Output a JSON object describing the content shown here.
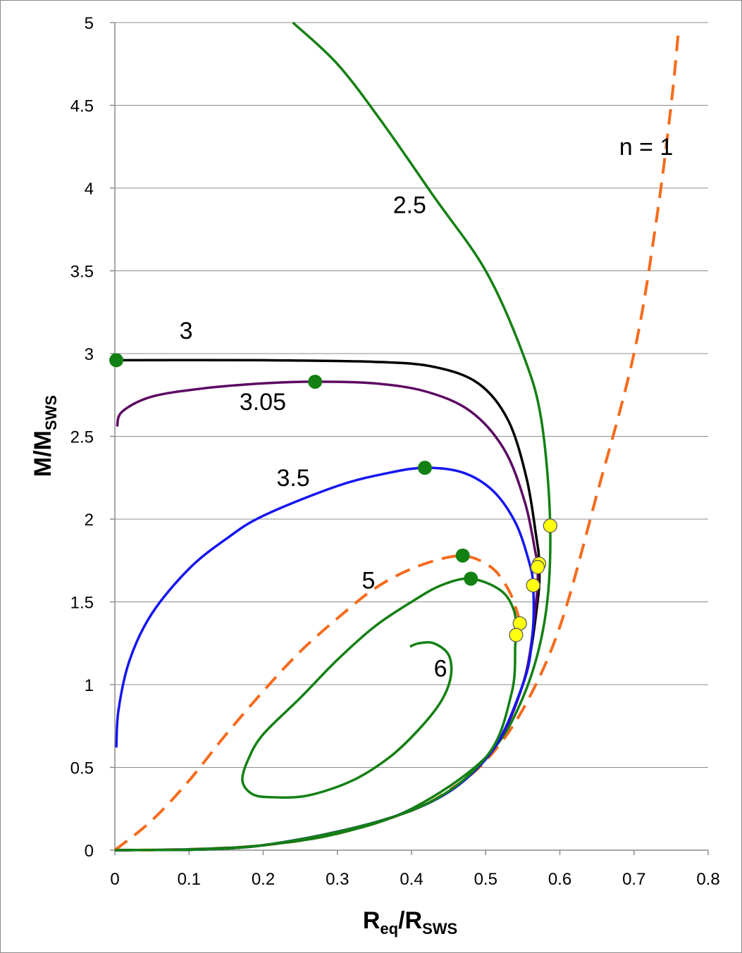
{
  "chart_data": {
    "type": "line",
    "xlabel": {
      "main": "R",
      "sub_main": "eq",
      "sep": "/R",
      "sub_den": "SWS"
    },
    "ylabel": {
      "main": "M/M",
      "sub": "SWS"
    },
    "xlim": [
      0,
      0.8
    ],
    "ylim": [
      0,
      5
    ],
    "x_ticks": [
      "0",
      "0.1",
      "0.2",
      "0.3",
      "0.4",
      "0.5",
      "0.6",
      "0.7",
      "0.8"
    ],
    "y_ticks": [
      "0",
      "0.5",
      "1",
      "1.5",
      "2",
      "2.5",
      "3",
      "3.5",
      "4",
      "4.5",
      "5"
    ],
    "grid": "horizontal",
    "colors": {
      "green": "#138013",
      "black": "#000000",
      "purple": "#5c0a63",
      "blue": "#1515f2",
      "orange": "#f56b1c",
      "yellow": "#ffff10"
    },
    "series": [
      {
        "name": "n = 1",
        "label": "n = 1",
        "color": "orange",
        "dashed": true,
        "points": [
          [
            0,
            0
          ],
          [
            0.1,
            0.005
          ],
          [
            0.2,
            0.03
          ],
          [
            0.3,
            0.1
          ],
          [
            0.4,
            0.24
          ],
          [
            0.45,
            0.36
          ],
          [
            0.5,
            0.54
          ],
          [
            0.55,
            0.85
          ],
          [
            0.6,
            1.35
          ],
          [
            0.65,
            2.15
          ],
          [
            0.7,
            3.0
          ],
          [
            0.73,
            3.8
          ],
          [
            0.75,
            4.5
          ],
          [
            0.76,
            4.95
          ]
        ]
      },
      {
        "name": "2.5",
        "label": "2.5",
        "color": "green",
        "dashed": false,
        "points": [
          [
            0,
            0
          ],
          [
            0.1,
            0.005
          ],
          [
            0.2,
            0.03
          ],
          [
            0.3,
            0.1
          ],
          [
            0.4,
            0.25
          ],
          [
            0.5,
            0.56
          ],
          [
            0.55,
            0.92
          ],
          [
            0.58,
            1.4
          ],
          [
            0.587,
            1.96
          ],
          [
            0.575,
            2.6
          ],
          [
            0.55,
            3.0
          ],
          [
            0.5,
            3.5
          ],
          [
            0.43,
            3.95
          ],
          [
            0.36,
            4.4
          ],
          [
            0.3,
            4.75
          ],
          [
            0.24,
            5.0
          ]
        ]
      },
      {
        "name": "3",
        "label": "3",
        "color": "black",
        "dashed": false,
        "points": [
          [
            0,
            2.96
          ],
          [
            0.2,
            2.96
          ],
          [
            0.35,
            2.95
          ],
          [
            0.43,
            2.92
          ],
          [
            0.49,
            2.82
          ],
          [
            0.53,
            2.6
          ],
          [
            0.555,
            2.25
          ],
          [
            0.568,
            1.9
          ],
          [
            0.572,
            1.74
          ],
          [
            0.57,
            1.5
          ],
          [
            0.55,
            1.0
          ],
          [
            0.5,
            0.55
          ],
          [
            0.4,
            0.24
          ],
          [
            0.2,
            0.03
          ],
          [
            0,
            0
          ]
        ]
      },
      {
        "name": "3.05",
        "label": "3.05",
        "color": "purple",
        "dashed": false,
        "points": [
          [
            0.003,
            2.56
          ],
          [
            0.01,
            2.65
          ],
          [
            0.05,
            2.74
          ],
          [
            0.12,
            2.79
          ],
          [
            0.2,
            2.82
          ],
          [
            0.27,
            2.83
          ],
          [
            0.35,
            2.82
          ],
          [
            0.42,
            2.77
          ],
          [
            0.48,
            2.65
          ],
          [
            0.525,
            2.42
          ],
          [
            0.553,
            2.1
          ],
          [
            0.567,
            1.8
          ],
          [
            0.57,
            1.72
          ],
          [
            0.568,
            1.5
          ],
          [
            0.55,
            1.0
          ],
          [
            0.5,
            0.55
          ],
          [
            0.4,
            0.24
          ],
          [
            0.2,
            0.03
          ],
          [
            0,
            0
          ]
        ]
      },
      {
        "name": "3.5",
        "label": "3.5",
        "color": "blue",
        "dashed": false,
        "points": [
          [
            0.002,
            0.62
          ],
          [
            0.005,
            0.85
          ],
          [
            0.02,
            1.15
          ],
          [
            0.05,
            1.43
          ],
          [
            0.1,
            1.7
          ],
          [
            0.15,
            1.88
          ],
          [
            0.2,
            2.02
          ],
          [
            0.3,
            2.2
          ],
          [
            0.37,
            2.28
          ],
          [
            0.42,
            2.31
          ],
          [
            0.47,
            2.28
          ],
          [
            0.51,
            2.17
          ],
          [
            0.54,
            1.98
          ],
          [
            0.558,
            1.75
          ],
          [
            0.564,
            1.6
          ],
          [
            0.563,
            1.3
          ],
          [
            0.55,
            1.0
          ],
          [
            0.5,
            0.55
          ],
          [
            0.4,
            0.24
          ],
          [
            0.2,
            0.03
          ],
          [
            0,
            0
          ]
        ]
      },
      {
        "name": "5",
        "label": "5",
        "color": "orange",
        "dashed": true,
        "points": [
          [
            0,
            0
          ],
          [
            0.05,
            0.18
          ],
          [
            0.1,
            0.42
          ],
          [
            0.15,
            0.7
          ],
          [
            0.2,
            0.96
          ],
          [
            0.25,
            1.2
          ],
          [
            0.3,
            1.4
          ],
          [
            0.35,
            1.58
          ],
          [
            0.4,
            1.7
          ],
          [
            0.45,
            1.77
          ],
          [
            0.48,
            1.77
          ],
          [
            0.51,
            1.7
          ],
          [
            0.53,
            1.58
          ],
          [
            0.54,
            1.47
          ],
          [
            0.546,
            1.37
          ],
          [
            0.542,
            1.3
          ]
        ]
      },
      {
        "name": "6",
        "label": "6",
        "color": "green",
        "dashed": false,
        "points": [
          [
            0,
            0
          ],
          [
            0.2,
            0.03
          ],
          [
            0.4,
            0.24
          ],
          [
            0.5,
            0.56
          ],
          [
            0.535,
            0.95
          ],
          [
            0.54,
            1.25
          ],
          [
            0.542,
            1.3
          ],
          [
            0.538,
            1.45
          ],
          [
            0.52,
            1.57
          ],
          [
            0.48,
            1.64
          ],
          [
            0.44,
            1.6
          ],
          [
            0.4,
            1.5
          ],
          [
            0.35,
            1.35
          ],
          [
            0.3,
            1.15
          ],
          [
            0.25,
            0.92
          ],
          [
            0.2,
            0.7
          ],
          [
            0.18,
            0.55
          ],
          [
            0.172,
            0.42
          ],
          [
            0.185,
            0.34
          ],
          [
            0.21,
            0.32
          ],
          [
            0.26,
            0.33
          ],
          [
            0.32,
            0.42
          ],
          [
            0.37,
            0.56
          ],
          [
            0.41,
            0.73
          ],
          [
            0.44,
            0.9
          ],
          [
            0.453,
            1.05
          ],
          [
            0.45,
            1.18
          ],
          [
            0.43,
            1.25
          ],
          [
            0.41,
            1.25
          ],
          [
            0.398,
            1.23
          ]
        ]
      }
    ],
    "stability_markers_green": [
      [
        0.002,
        2.96
      ],
      [
        0.27,
        2.83
      ],
      [
        0.418,
        2.31
      ],
      [
        0.469,
        1.78
      ],
      [
        0.48,
        1.64
      ]
    ],
    "turning_markers_yellow": [
      [
        0.587,
        1.96
      ],
      [
        0.572,
        1.73
      ],
      [
        0.57,
        1.71
      ],
      [
        0.564,
        1.6
      ],
      [
        0.546,
        1.37
      ],
      [
        0.541,
        1.3
      ]
    ],
    "annotations": [
      {
        "text": "n = 1",
        "x": 0.68,
        "y": 4.2
      },
      {
        "text": "2.5",
        "x": 0.375,
        "y": 3.85
      },
      {
        "text": "3",
        "x": 0.087,
        "y": 3.09
      },
      {
        "text": "3.05",
        "x": 0.168,
        "y": 2.66
      },
      {
        "text": "3.5",
        "x": 0.218,
        "y": 2.2
      },
      {
        "text": "5",
        "x": 0.333,
        "y": 1.58
      },
      {
        "text": "6",
        "x": 0.43,
        "y": 1.05
      }
    ]
  }
}
